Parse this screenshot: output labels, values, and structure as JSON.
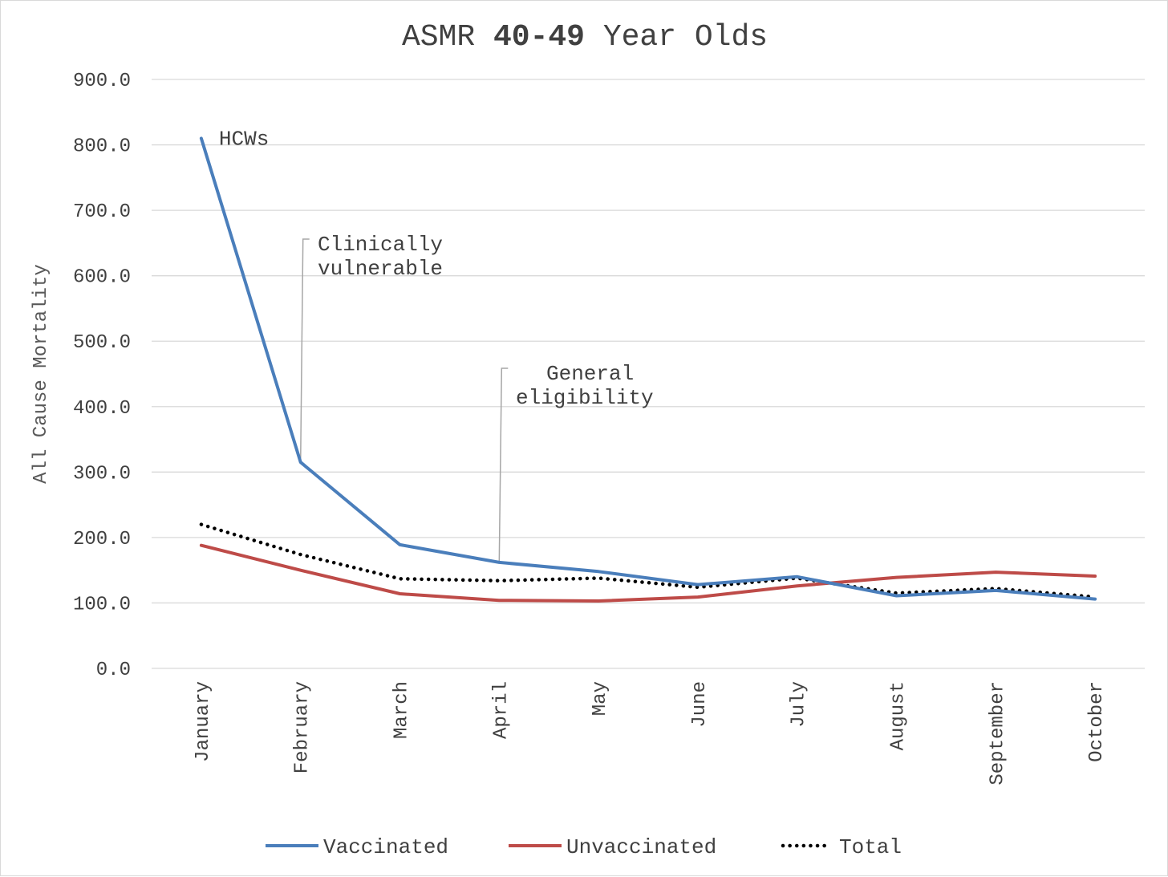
{
  "chart_data": {
    "type": "line",
    "title": "ASMR",
    "title_bold": "40-49",
    "title_rest": "Year Olds",
    "ylabel": "All Cause Mortality",
    "xlabel": "",
    "ylim": [
      0,
      900
    ],
    "y_ticks": [
      "0.0",
      "100.0",
      "200.0",
      "300.0",
      "400.0",
      "500.0",
      "600.0",
      "700.0",
      "800.0",
      "900.0"
    ],
    "categories": [
      "January",
      "February",
      "March",
      "April",
      "May",
      "June",
      "July",
      "August",
      "September",
      "October"
    ],
    "grid": true,
    "legend_position": "bottom",
    "series": [
      {
        "name": "Vaccinated",
        "color": "#4a7ebb",
        "style": "solid",
        "values": [
          810,
          315,
          189,
          162,
          148,
          128,
          140,
          111,
          119,
          106
        ]
      },
      {
        "name": "Unvaccinated",
        "color": "#be4b48",
        "style": "solid",
        "values": [
          188,
          150,
          114,
          104,
          103,
          109,
          126,
          139,
          147,
          141
        ]
      },
      {
        "name": "Total",
        "color": "#000000",
        "style": "dotted",
        "values": [
          220,
          174,
          137,
          134,
          138,
          124,
          138,
          115,
          122,
          109
        ]
      }
    ],
    "annotations": [
      {
        "lines": [
          "HCWs"
        ],
        "category": "January",
        "value": 810
      },
      {
        "lines": [
          "Clinically",
          "vulnerable"
        ],
        "category": "February",
        "value": 315
      },
      {
        "lines": [
          "General",
          "eligibility"
        ],
        "category": "April",
        "value": 162
      }
    ]
  }
}
